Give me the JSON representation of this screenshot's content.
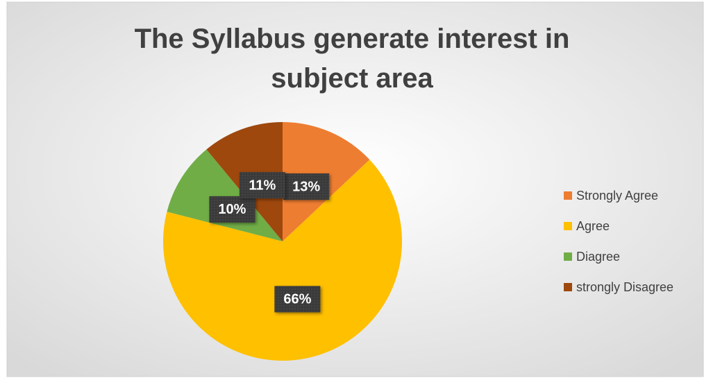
{
  "chart_data": {
    "type": "pie",
    "title": "The Syllabus generate interest in subject area",
    "categories": [
      "Strongly Agree",
      "Agree",
      "Diagree",
      "strongly Disagree"
    ],
    "values": [
      13,
      66,
      10,
      11
    ],
    "value_labels": [
      "13%",
      "66%",
      "10%",
      "11%"
    ],
    "colors": [
      "#ED7D31",
      "#FFC000",
      "#70AD47",
      "#9E480E"
    ],
    "legend": "right"
  }
}
